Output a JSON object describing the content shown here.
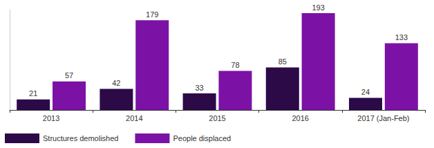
{
  "chart_data": {
    "type": "bar",
    "categories": [
      "2013",
      "2014",
      "2015",
      "2016",
      "2017 (Jan-Feb)"
    ],
    "series": [
      {
        "name": "Structures demolished",
        "color": "#2c0a48",
        "values": [
          21,
          42,
          33,
          85,
          24
        ]
      },
      {
        "name": "People displaced",
        "color": "#7b12a5",
        "values": [
          57,
          179,
          78,
          193,
          133
        ]
      }
    ],
    "ylim": [
      0,
      200
    ],
    "grid": false,
    "legend": "bottom-left",
    "data_labels": true,
    "tick_labels": "x"
  }
}
